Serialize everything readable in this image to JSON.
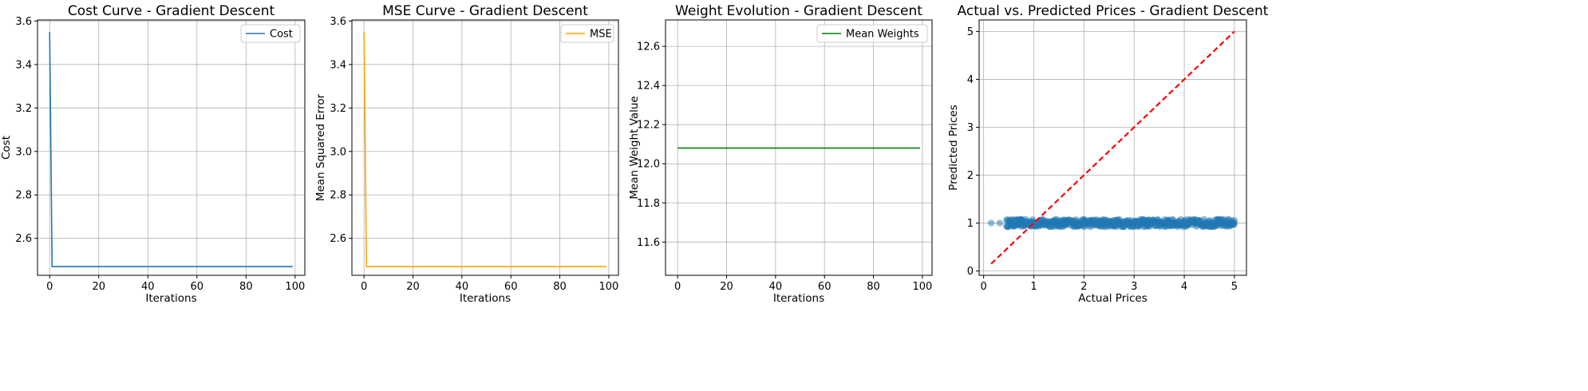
{
  "chart_data": [
    {
      "type": "line",
      "title": "Cost Curve - Gradient Descent",
      "xlabel": "Iterations",
      "ylabel": "Cost",
      "xlim": [
        -4.95,
        103.95
      ],
      "ylim": [
        2.43,
        3.605
      ],
      "xticks": [
        0,
        20,
        40,
        60,
        80,
        100
      ],
      "yticks": [
        2.6,
        2.8,
        3.0,
        3.2,
        3.4,
        3.6
      ],
      "grid": true,
      "legend": "top-right",
      "series": [
        {
          "name": "Cost",
          "color": "#1f77b4",
          "points": [
            [
              0,
              3.55
            ],
            [
              1,
              2.47
            ],
            [
              99,
              2.47
            ]
          ]
        }
      ]
    },
    {
      "type": "line",
      "title": "MSE Curve - Gradient Descent",
      "xlabel": "Iterations",
      "ylabel": "Mean Squared Error",
      "xlim": [
        -4.95,
        103.95
      ],
      "ylim": [
        2.43,
        3.605
      ],
      "xticks": [
        0,
        20,
        40,
        60,
        80,
        100
      ],
      "yticks": [
        2.6,
        2.8,
        3.0,
        3.2,
        3.4,
        3.6
      ],
      "grid": true,
      "legend": "top-right",
      "series": [
        {
          "name": "MSE",
          "color": "#ffa500",
          "points": [
            [
              0,
              3.55
            ],
            [
              1,
              2.47
            ],
            [
              99,
              2.47
            ]
          ]
        }
      ]
    },
    {
      "type": "line",
      "title": "Weight Evolution - Gradient Descent",
      "xlabel": "Iterations",
      "ylabel": "Mean Weight Value",
      "xlim": [
        -4.95,
        103.95
      ],
      "ylim": [
        11.43,
        12.735
      ],
      "xticks": [
        0,
        20,
        40,
        60,
        80,
        100
      ],
      "yticks": [
        11.6,
        11.8,
        12.0,
        12.2,
        12.4,
        12.6
      ],
      "grid": true,
      "legend": "top-right",
      "series": [
        {
          "name": "Mean Weights",
          "color": "#008000",
          "points": [
            [
              0,
              12.08
            ],
            [
              99,
              12.08
            ]
          ]
        }
      ]
    },
    {
      "type": "scatter",
      "title": "Actual vs. Predicted Prices - Gradient Descent",
      "xlabel": "Actual Prices",
      "ylabel": "Predicted Prices",
      "xlim": [
        -0.09,
        5.24
      ],
      "ylim": [
        -0.09,
        5.24
      ],
      "xticks": [
        0,
        1,
        2,
        3,
        4,
        5
      ],
      "yticks": [
        0,
        1,
        2,
        3,
        4,
        5
      ],
      "grid": true,
      "legend": "none",
      "scatter": {
        "color": "#1f77b4",
        "x_min": 0.15,
        "x_max": 5.0,
        "x_dense_from": 0.45,
        "y_center": 1.0,
        "y_spread": 0.08
      },
      "reference_line": {
        "color": "#ff0000",
        "points": [
          [
            0.15,
            0.15
          ],
          [
            5.0,
            5.0
          ]
        ]
      }
    }
  ]
}
